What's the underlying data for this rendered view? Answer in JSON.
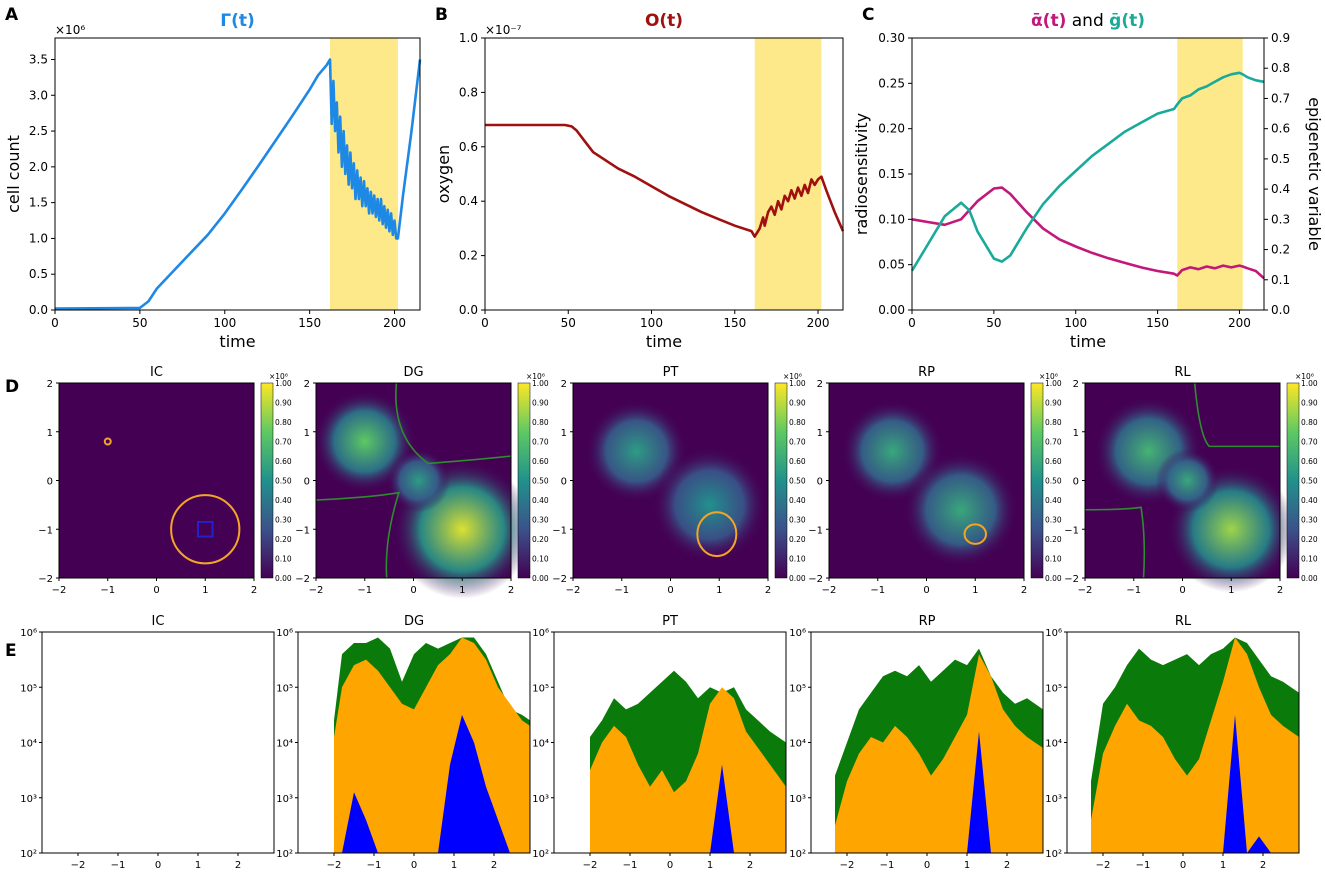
{
  "colors": {
    "gamma": "#1e88e5",
    "oxygen": "#a01010",
    "alpha": "#c2187a",
    "gene": "#1aaa9a",
    "highlight": "#fde98a",
    "contour_orange": "#f5a524",
    "contour_green": "#2e8b2e",
    "contour_blue": "#2222cc",
    "hist_green": "#0a7a0a",
    "hist_orange": "#ffa500",
    "hist_blue": "#0000ff"
  },
  "chart_data": [
    {
      "id": "A",
      "letter": "A",
      "type": "line",
      "title": "Γ(t)",
      "xlabel": "time",
      "ylabel": "cell count",
      "scale_label": "×10⁶",
      "xlim": [
        0,
        215
      ],
      "ylim": [
        0,
        3.8
      ],
      "xticks": [
        0,
        50,
        100,
        150,
        200
      ],
      "xtick_labels": [
        "0",
        "50",
        "100",
        "150",
        "200"
      ],
      "yticks": [
        0,
        0.5,
        1,
        1.5,
        2,
        2.5,
        3,
        3.5
      ],
      "ytick_labels": [
        "0.0",
        "0.5",
        "1.0",
        "1.5",
        "2.0",
        "2.5",
        "3.0",
        "3.5"
      ],
      "highlight": [
        162,
        202
      ],
      "series": [
        {
          "name": "Γ(t)",
          "color": "#1e88e5",
          "x": [
            0,
            50,
            55,
            60,
            70,
            80,
            90,
            100,
            110,
            120,
            130,
            140,
            150,
            155,
            160,
            162,
            163,
            164,
            165,
            166,
            167,
            168,
            169,
            170,
            171,
            172,
            173,
            174,
            175,
            176,
            177,
            178,
            179,
            180,
            181,
            182,
            183,
            184,
            185,
            186,
            187,
            188,
            189,
            190,
            191,
            192,
            193,
            194,
            195,
            196,
            197,
            198,
            199,
            200,
            201,
            202,
            205,
            210,
            215
          ],
          "y": [
            0.02,
            0.03,
            0.12,
            0.3,
            0.55,
            0.8,
            1.05,
            1.35,
            1.68,
            2.02,
            2.37,
            2.72,
            3.08,
            3.28,
            3.42,
            3.5,
            2.6,
            3.2,
            2.5,
            2.9,
            2.2,
            2.7,
            2.0,
            2.5,
            1.9,
            2.3,
            1.75,
            2.2,
            1.7,
            2.05,
            1.55,
            1.95,
            1.55,
            1.85,
            1.45,
            1.8,
            1.45,
            1.7,
            1.35,
            1.65,
            1.35,
            1.6,
            1.3,
            1.55,
            1.25,
            1.55,
            1.2,
            1.45,
            1.15,
            1.4,
            1.1,
            1.35,
            1.05,
            1.25,
            1.0,
            1.0,
            1.6,
            2.5,
            3.5
          ]
        }
      ]
    },
    {
      "id": "B",
      "letter": "B",
      "type": "line",
      "title": "O(t)",
      "xlabel": "time",
      "ylabel": "oxygen",
      "scale_label": "×10⁻⁷",
      "xlim": [
        0,
        215
      ],
      "ylim": [
        0,
        1.0
      ],
      "xticks": [
        0,
        50,
        100,
        150,
        200
      ],
      "xtick_labels": [
        "0",
        "50",
        "100",
        "150",
        "200"
      ],
      "yticks": [
        0,
        0.2,
        0.4,
        0.6,
        0.8,
        1.0
      ],
      "ytick_labels": [
        "0.0",
        "0.2",
        "0.4",
        "0.6",
        "0.8",
        "1.0"
      ],
      "highlight": [
        162,
        202
      ],
      "series": [
        {
          "name": "O(t)",
          "color": "#a01010",
          "x": [
            0,
            48,
            52,
            55,
            60,
            65,
            70,
            80,
            90,
            100,
            110,
            120,
            130,
            140,
            150,
            160,
            162,
            165,
            167,
            168,
            170,
            172,
            174,
            176,
            178,
            180,
            182,
            184,
            186,
            188,
            190,
            192,
            194,
            196,
            198,
            200,
            202,
            205,
            210,
            215
          ],
          "y": [
            0.68,
            0.68,
            0.675,
            0.66,
            0.62,
            0.58,
            0.56,
            0.52,
            0.49,
            0.455,
            0.42,
            0.39,
            0.36,
            0.335,
            0.31,
            0.29,
            0.27,
            0.3,
            0.34,
            0.31,
            0.36,
            0.38,
            0.35,
            0.4,
            0.37,
            0.42,
            0.4,
            0.44,
            0.41,
            0.45,
            0.42,
            0.46,
            0.43,
            0.48,
            0.46,
            0.48,
            0.49,
            0.44,
            0.36,
            0.29
          ]
        }
      ]
    },
    {
      "id": "C",
      "letter": "C",
      "type": "line",
      "title_parts": [
        "ᾱ(t)",
        " and ",
        "ḡ(t)"
      ],
      "xlabel": "time",
      "ylabel": "radiosensitivity",
      "ylabel_right": "epigenetic variable",
      "xlim": [
        0,
        215
      ],
      "ylim": [
        0,
        0.3
      ],
      "ylim_right": [
        0,
        0.9
      ],
      "xticks": [
        0,
        50,
        100,
        150,
        200
      ],
      "xtick_labels": [
        "0",
        "50",
        "100",
        "150",
        "200"
      ],
      "yticks": [
        0,
        0.05,
        0.1,
        0.15,
        0.2,
        0.25,
        0.3
      ],
      "ytick_labels": [
        "0.00",
        "0.05",
        "0.10",
        "0.15",
        "0.20",
        "0.25",
        "0.30"
      ],
      "yticks_right": [
        0,
        0.1,
        0.2,
        0.3,
        0.4,
        0.5,
        0.6,
        0.7,
        0.8,
        0.9
      ],
      "ytick_labels_right": [
        "0.0",
        "0.1",
        "0.2",
        "0.3",
        "0.4",
        "0.5",
        "0.6",
        "0.7",
        "0.8",
        "0.9"
      ],
      "highlight": [
        162,
        202
      ],
      "series": [
        {
          "name": "ᾱ(t)",
          "axis": "left",
          "color": "#c2187a",
          "x": [
            0,
            10,
            20,
            30,
            40,
            50,
            55,
            60,
            70,
            80,
            90,
            100,
            110,
            120,
            130,
            140,
            150,
            160,
            162,
            165,
            170,
            175,
            180,
            185,
            190,
            195,
            200,
            202,
            205,
            210,
            215
          ],
          "y": [
            0.1,
            0.097,
            0.094,
            0.1,
            0.12,
            0.134,
            0.135,
            0.128,
            0.108,
            0.09,
            0.078,
            0.07,
            0.063,
            0.057,
            0.052,
            0.047,
            0.043,
            0.04,
            0.038,
            0.044,
            0.047,
            0.045,
            0.048,
            0.046,
            0.049,
            0.047,
            0.049,
            0.048,
            0.046,
            0.043,
            0.035
          ]
        },
        {
          "name": "ḡ(t)",
          "axis": "right",
          "color": "#1aaa9a",
          "x": [
            0,
            10,
            20,
            30,
            35,
            40,
            50,
            55,
            60,
            70,
            80,
            90,
            100,
            110,
            120,
            130,
            140,
            150,
            160,
            162,
            165,
            170,
            175,
            180,
            185,
            190,
            195,
            200,
            202,
            205,
            210,
            215
          ],
          "y": [
            0.13,
            0.22,
            0.31,
            0.355,
            0.33,
            0.26,
            0.17,
            0.16,
            0.18,
            0.27,
            0.35,
            0.41,
            0.46,
            0.51,
            0.55,
            0.59,
            0.62,
            0.65,
            0.665,
            0.68,
            0.7,
            0.71,
            0.73,
            0.74,
            0.755,
            0.77,
            0.78,
            0.785,
            0.78,
            0.77,
            0.76,
            0.755
          ]
        }
      ]
    },
    {
      "id": "D",
      "letter": "D",
      "type": "heatmap",
      "colorbar_ticks": [
        "0.00",
        "0.10",
        "0.20",
        "0.30",
        "0.40",
        "0.50",
        "0.60",
        "0.70",
        "0.80",
        "0.90",
        "1.00"
      ],
      "colorbar_scale": "×10⁶",
      "xlim": [
        -2,
        2
      ],
      "ylim": [
        -2,
        2
      ],
      "xtick_labels": [
        "−2",
        "−1",
        "0",
        "1",
        "2"
      ],
      "ytick_labels": [
        "−2",
        "−1",
        "0",
        "1",
        "2"
      ],
      "panels": [
        {
          "title": "IC",
          "blobs": []
        },
        {
          "title": "DG",
          "blobs": [
            {
              "cx": -1,
              "cy": 0.8,
              "r": 0.8,
              "v": 0.75
            },
            {
              "cx": 1,
              "cy": -1,
              "r": 1.1,
              "v": 0.95
            },
            {
              "cx": 0.1,
              "cy": 0,
              "r": 0.5,
              "v": 0.55
            }
          ]
        },
        {
          "title": "PT",
          "blobs": [
            {
              "cx": -0.7,
              "cy": 0.6,
              "r": 0.8,
              "v": 0.55
            },
            {
              "cx": 0.8,
              "cy": -0.5,
              "r": 0.9,
              "v": 0.5
            }
          ]
        },
        {
          "title": "RP",
          "blobs": [
            {
              "cx": -0.7,
              "cy": 0.6,
              "r": 0.8,
              "v": 0.6
            },
            {
              "cx": 0.7,
              "cy": -0.6,
              "r": 0.9,
              "v": 0.6
            }
          ]
        },
        {
          "title": "RL",
          "blobs": [
            {
              "cx": -0.7,
              "cy": 0.6,
              "r": 0.85,
              "v": 0.65
            },
            {
              "cx": 1,
              "cy": -1,
              "r": 1.0,
              "v": 0.85
            },
            {
              "cx": 0.1,
              "cy": 0,
              "r": 0.5,
              "v": 0.6
            }
          ]
        }
      ]
    },
    {
      "id": "E",
      "letter": "E",
      "type": "area",
      "xlim": [
        -2.9,
        2.9
      ],
      "xticks": [
        -2,
        -1,
        0,
        1,
        2
      ],
      "xtick_labels": [
        "−2",
        "−1",
        "0",
        "1",
        "2"
      ],
      "ylog": true,
      "ylim_log": [
        2,
        6
      ],
      "ytick_labels": [
        "10²",
        "10³",
        "10⁴",
        "10⁵",
        "10⁶"
      ],
      "panels": [
        {
          "title": "IC",
          "x": [],
          "green": [],
          "orange": [],
          "blue": []
        },
        {
          "title": "DG",
          "x": [
            -2,
            -1.8,
            -1.5,
            -1.2,
            -0.9,
            -0.6,
            -0.3,
            0,
            0.3,
            0.6,
            0.9,
            1.2,
            1.5,
            1.8,
            2.1,
            2.4,
            2.7,
            2.9
          ],
          "green": [
            4.4,
            5.6,
            5.8,
            5.8,
            5.9,
            5.7,
            5.1,
            5.6,
            5.8,
            5.7,
            5.8,
            5.9,
            5.9,
            5.6,
            5.1,
            4.6,
            4.5,
            4.4
          ],
          "orange": [
            4.1,
            5.0,
            5.4,
            5.5,
            5.3,
            5.0,
            4.7,
            4.6,
            5.0,
            5.4,
            5.6,
            5.9,
            5.8,
            5.5,
            5.0,
            4.7,
            4.4,
            4.3
          ],
          "blue": [
            2.0,
            2.0,
            3.1,
            2.6,
            2.0,
            2.0,
            2.0,
            2.0,
            2.0,
            2.0,
            3.6,
            4.5,
            4.0,
            3.2,
            2.6,
            2.0,
            2.0,
            2.0
          ]
        },
        {
          "title": "PT",
          "x": [
            -2,
            -1.7,
            -1.4,
            -1.1,
            -0.8,
            -0.5,
            -0.2,
            0.1,
            0.4,
            0.7,
            1.0,
            1.3,
            1.6,
            1.9,
            2.2,
            2.5,
            2.9
          ],
          "green": [
            4.1,
            4.4,
            4.8,
            4.6,
            4.7,
            4.9,
            5.1,
            5.3,
            5.1,
            4.8,
            5.0,
            4.9,
            5.0,
            4.6,
            4.4,
            4.2,
            4.0
          ],
          "orange": [
            3.5,
            4.0,
            4.3,
            4.1,
            3.6,
            3.2,
            3.5,
            3.1,
            3.3,
            3.8,
            4.7,
            5.0,
            4.8,
            4.2,
            3.9,
            3.6,
            3.2
          ],
          "blue": [
            2,
            2,
            2,
            2,
            2,
            2,
            2,
            2,
            2,
            2,
            2,
            3.6,
            2,
            2,
            2,
            2,
            2
          ]
        },
        {
          "title": "RP",
          "x": [
            -2.3,
            -2,
            -1.7,
            -1.4,
            -1.1,
            -0.8,
            -0.5,
            -0.2,
            0.1,
            0.4,
            0.7,
            1.0,
            1.3,
            1.6,
            1.9,
            2.2,
            2.5,
            2.9
          ],
          "green": [
            3.4,
            4.0,
            4.6,
            4.9,
            5.2,
            5.3,
            5.2,
            5.4,
            5.1,
            5.3,
            5.5,
            5.4,
            5.7,
            5.2,
            4.9,
            4.7,
            4.8,
            4.6
          ],
          "orange": [
            2.5,
            3.3,
            3.8,
            4.1,
            4.0,
            4.3,
            4.1,
            3.8,
            3.4,
            3.7,
            4.1,
            4.5,
            5.6,
            5.2,
            4.6,
            4.3,
            4.1,
            3.9
          ],
          "blue": [
            2,
            2,
            2,
            2,
            2,
            2,
            2,
            2,
            2,
            2,
            2,
            2,
            4.2,
            2,
            2,
            2,
            2,
            2
          ]
        },
        {
          "title": "RL",
          "x": [
            -2.3,
            -2,
            -1.7,
            -1.4,
            -1.1,
            -0.8,
            -0.5,
            -0.2,
            0.1,
            0.4,
            0.7,
            1.0,
            1.3,
            1.6,
            1.9,
            2.2,
            2.5,
            2.9
          ],
          "green": [
            3.3,
            4.7,
            5.0,
            5.4,
            5.7,
            5.5,
            5.4,
            5.5,
            5.6,
            5.4,
            5.6,
            5.7,
            5.9,
            5.8,
            5.5,
            5.2,
            5.1,
            4.9
          ],
          "orange": [
            2.6,
            3.8,
            4.3,
            4.7,
            4.4,
            4.3,
            4.1,
            3.7,
            3.4,
            3.7,
            4.4,
            5.1,
            5.9,
            5.6,
            5.0,
            4.5,
            4.3,
            4.1
          ],
          "blue": [
            2,
            2,
            2,
            2,
            2,
            2,
            2,
            2,
            2,
            2,
            2,
            2,
            4.5,
            2,
            2.3,
            2,
            2,
            2
          ]
        }
      ]
    }
  ]
}
